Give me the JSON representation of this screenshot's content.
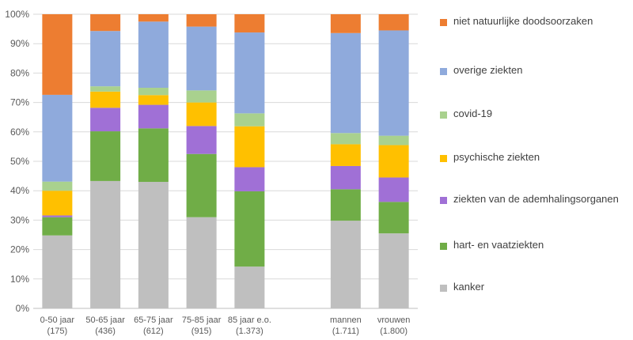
{
  "chart_data": {
    "type": "bar",
    "stacked": true,
    "normalized": true,
    "categories": [
      {
        "label": "0-50 jaar",
        "sub": "(175)"
      },
      {
        "label": "50-65 jaar",
        "sub": "(436)"
      },
      {
        "label": "65-75 jaar",
        "sub": "(612)"
      },
      {
        "label": "75-85 jaar",
        "sub": "(915)"
      },
      {
        "label": "85 jaar e.o.",
        "sub": "(1.373)"
      },
      {
        "label": "",
        "sub": ""
      },
      {
        "label": "mannen",
        "sub": "(1.711)"
      },
      {
        "label": "vrouwen",
        "sub": "(1.800)"
      }
    ],
    "series": [
      {
        "name": "kanker",
        "color": "#bfbfbf",
        "values": [
          24.8,
          43.3,
          43.0,
          31.0,
          14.2,
          null,
          29.8,
          25.5
        ]
      },
      {
        "name": "hart- en vaatziekten",
        "color": "#70ad47",
        "values": [
          6.2,
          16.9,
          18.2,
          21.5,
          25.6,
          null,
          10.7,
          10.7
        ]
      },
      {
        "name": "ziekten van de ademhalingsorganen",
        "color": "#a070d6",
        "values": [
          0.6,
          8.0,
          8.0,
          9.5,
          8.2,
          null,
          7.9,
          8.3
        ]
      },
      {
        "name": "psychische ziekten",
        "color": "#ffc000",
        "values": [
          8.4,
          5.5,
          3.3,
          8.0,
          13.9,
          null,
          7.4,
          11.0
        ]
      },
      {
        "name": "covid-19",
        "color": "#a9d18e",
        "values": [
          3.1,
          1.8,
          2.5,
          4.1,
          4.4,
          null,
          3.8,
          3.2
        ]
      },
      {
        "name": "overige ziekten",
        "color": "#8faadc",
        "values": [
          29.5,
          18.8,
          22.5,
          21.7,
          27.5,
          null,
          34.0,
          35.8
        ]
      },
      {
        "name": "niet natuurlijke doodsoorzaken",
        "color": "#ed7d31",
        "values": [
          27.4,
          5.7,
          2.5,
          4.2,
          6.2,
          null,
          6.4,
          5.5
        ]
      }
    ],
    "y_ticks": [
      "0%",
      "10%",
      "20%",
      "30%",
      "40%",
      "50%",
      "60%",
      "70%",
      "80%",
      "90%",
      "100%"
    ],
    "ylim": [
      0,
      100
    ],
    "grid": true,
    "legend_position": "right",
    "legend_order": [
      "niet natuurlijke doodsoorzaken",
      "overige ziekten",
      "covid-19",
      "psychische ziekten",
      "ziekten van de ademhalingsorganen",
      "hart- en vaatziekten",
      "kanker"
    ]
  }
}
